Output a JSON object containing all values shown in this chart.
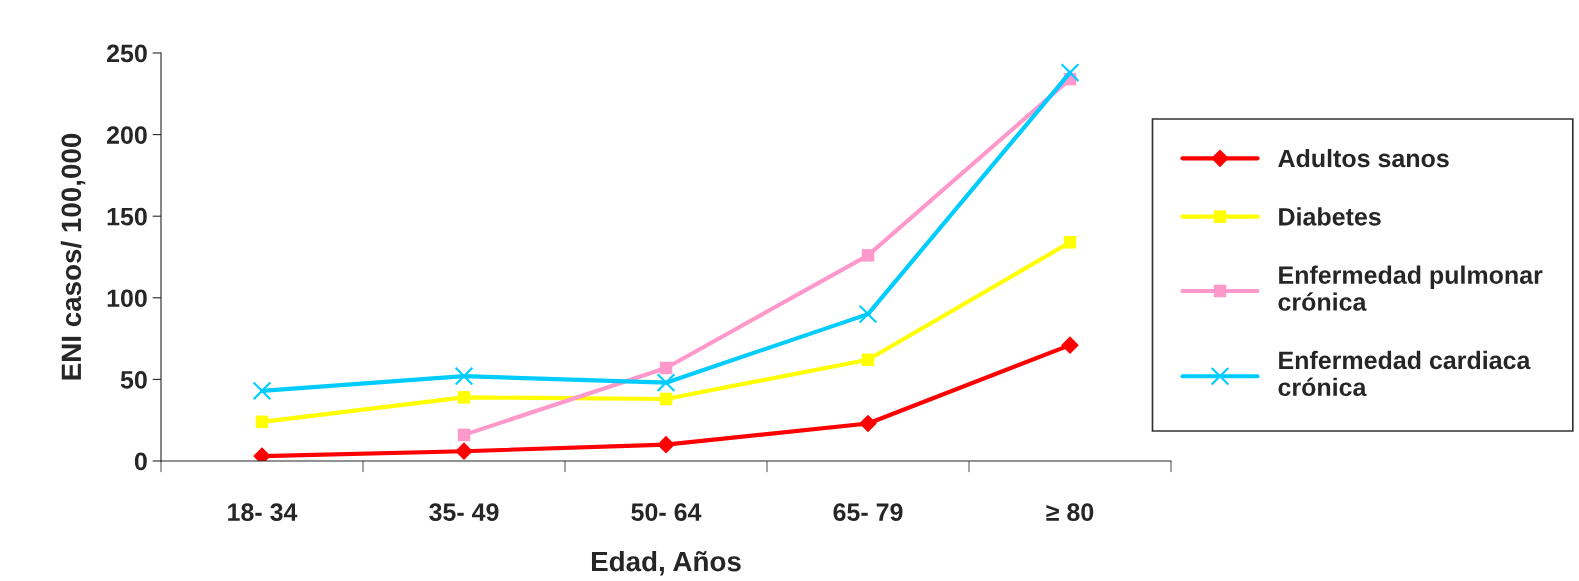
{
  "chart_data": {
    "type": "line",
    "xlabel": "Edad, Años",
    "ylabel": "ENI casos/ 100,000",
    "categories": [
      "18- 34",
      "35- 49",
      "50- 64",
      "65- 79",
      "≥ 80"
    ],
    "ylim": [
      0,
      250
    ],
    "yticks": [
      0,
      50,
      100,
      150,
      200,
      250
    ],
    "grid": false,
    "legend": "right",
    "series": [
      {
        "name": "Adultos sanos",
        "color": "#ff0000",
        "marker": "diamond",
        "values": [
          3,
          6,
          10,
          23,
          71
        ]
      },
      {
        "name": "Diabetes",
        "color": "#ffff00",
        "marker": "square",
        "values": [
          24,
          39,
          38,
          62,
          134
        ]
      },
      {
        "name": "Enfermedad pulmonar crónica",
        "color": "#ff99cc",
        "marker": "square",
        "values": [
          null,
          16,
          57,
          126,
          234
        ]
      },
      {
        "name": "Enfermedad cardiaca crónica",
        "color": "#00ccff",
        "marker": "cross",
        "values": [
          43,
          52,
          48,
          90,
          238
        ]
      }
    ]
  }
}
